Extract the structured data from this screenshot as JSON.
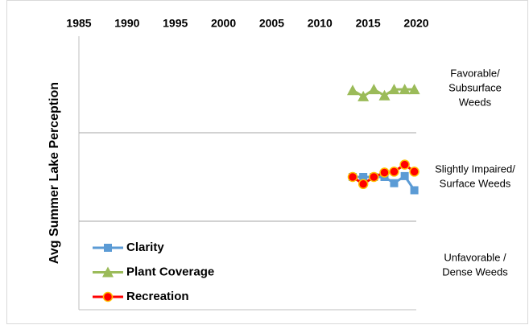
{
  "chart_data": {
    "type": "line",
    "y_label": "Avg  Summer Lake Perception",
    "xlim": [
      1985,
      2020
    ],
    "xticks": [
      1985,
      1990,
      1995,
      2000,
      2005,
      2010,
      2015,
      2020
    ],
    "x_axis_position": "top",
    "ylim": [
      0,
      3
    ],
    "yticks": [
      1,
      2
    ],
    "ytick_labels": false,
    "grid": true,
    "legend": "lower left",
    "band_labels": [
      {
        "value": 2.5,
        "lines": [
          "Favorable/",
          "Subsurface",
          "Weeds"
        ]
      },
      {
        "value": 1.5,
        "lines": [
          "Slightly Impaired/",
          "Surface Weeds"
        ]
      },
      {
        "value": 0.5,
        "lines": [
          "Unfavorable /",
          "Dense Weeds"
        ]
      }
    ],
    "x": [
      2013.4,
      2014.5,
      2015.6,
      2016.7,
      2017.7,
      2018.8,
      2019.8
    ],
    "series": [
      {
        "name": "Clarity",
        "color": "#5b9bd5",
        "marker": "square",
        "values": [
          1.5,
          1.5,
          1.5,
          1.5,
          1.43,
          1.51,
          1.35
        ]
      },
      {
        "name": "Plant Coverage",
        "color": "#9bbb59",
        "marker": "triangle",
        "values": [
          2.48,
          2.41,
          2.49,
          2.42,
          2.49,
          2.49,
          2.49
        ]
      },
      {
        "name": "Recreation",
        "color": "#ff0000",
        "marker": "circle",
        "marker_edge": "#ffc000",
        "values": [
          1.5,
          1.42,
          1.5,
          1.55,
          1.56,
          1.64,
          1.56
        ]
      }
    ]
  }
}
